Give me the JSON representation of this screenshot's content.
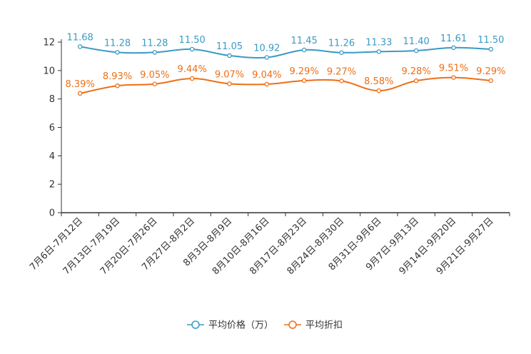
{
  "chart_data": {
    "type": "line",
    "categories": [
      "7月6日-7月12日",
      "7月13日-7月19日",
      "7月20日-7月26日",
      "7月27日-8月2日",
      "8月3日-8月9日",
      "8月10日-8月16日",
      "8月17日-8月23日",
      "8月24日-8月30日",
      "8月31日-9月6日",
      "9月7日-9月13日",
      "9月14日-9月20日",
      "9月21日-9月27日"
    ],
    "series": [
      {
        "name": "平均价格（万）",
        "color": "#3a9ac4",
        "values": [
          11.68,
          11.28,
          11.28,
          11.5,
          11.05,
          10.92,
          11.45,
          11.26,
          11.33,
          11.4,
          11.61,
          11.5
        ],
        "labels": [
          "11.68",
          "11.28",
          "11.28",
          "11.50",
          "11.05",
          "10.92",
          "11.45",
          "11.26",
          "11.33",
          "11.40",
          "11.61",
          "11.50"
        ]
      },
      {
        "name": "平均折扣",
        "color": "#ee6f16",
        "values": [
          8.39,
          8.93,
          9.05,
          9.44,
          9.07,
          9.04,
          9.29,
          9.27,
          8.58,
          9.28,
          9.51,
          9.29
        ],
        "labels": [
          "8.39%",
          "8.93%",
          "9.05%",
          "9.44%",
          "9.07%",
          "9.04%",
          "9.29%",
          "9.27%",
          "8.58%",
          "9.28%",
          "9.51%",
          "9.29%"
        ]
      }
    ],
    "yticks": [
      0,
      2,
      4,
      6,
      8,
      10,
      12
    ],
    "ylim": [
      0,
      12
    ],
    "title": "",
    "xlabel": "",
    "ylabel": "",
    "legend_position": "bottom-center",
    "grid": false
  }
}
